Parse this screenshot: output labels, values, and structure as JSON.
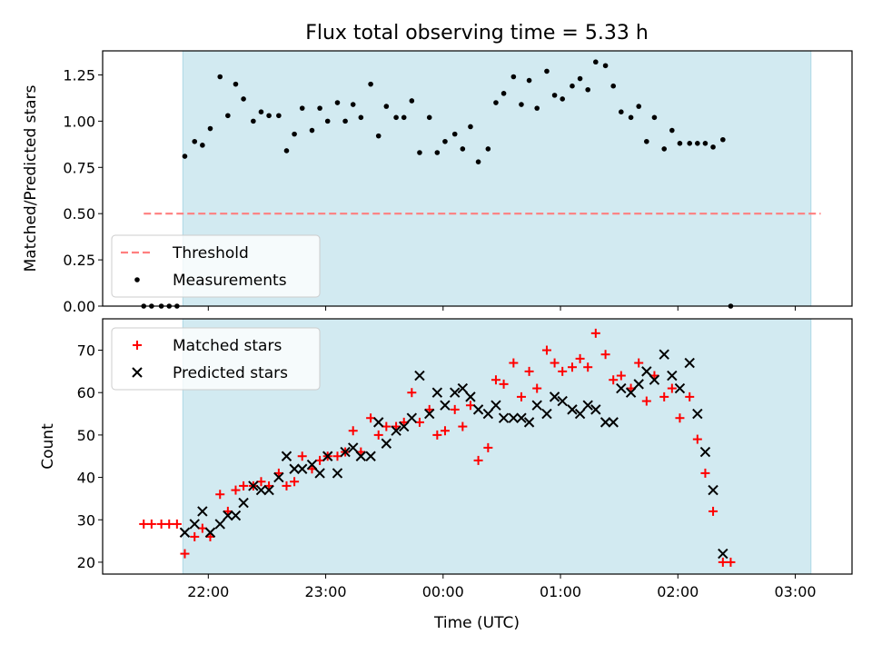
{
  "title": "Flux total observing time = 5.33 h",
  "xlabel": "Time (UTC)",
  "x_tick_labels": [
    "22:00",
    "23:00",
    "00:00",
    "01:00",
    "02:00",
    "03:00"
  ],
  "colors": {
    "shade": "#add8e6",
    "threshold": "#ff7f7f",
    "measurements": "#000000",
    "matched": "#ff0000",
    "predicted": "#000000"
  },
  "chart_data": [
    {
      "type": "scatter",
      "ylabel": "Matched/Predicted stars",
      "ylim": [
        0.0,
        1.38
      ],
      "y_tick_labels": [
        "0.00",
        "0.25",
        "0.50",
        "0.75",
        "1.00",
        "1.25"
      ],
      "xlim": [
        "21:06",
        "03:29"
      ],
      "shaded_interval": [
        "21:47",
        "03:08"
      ],
      "legend_position": "lower left",
      "threshold": {
        "name": "Threshold",
        "value": 0.5,
        "x_range": [
          "21:27",
          "03:13"
        ]
      },
      "series": [
        {
          "name": "Measurements",
          "points": [
            [
              "21:27",
              0.0
            ],
            [
              "21:31",
              0.0
            ],
            [
              "21:36",
              0.0
            ],
            [
              "21:40",
              0.0
            ],
            [
              "21:44",
              0.0
            ],
            [
              "21:48",
              0.81
            ],
            [
              "21:53",
              0.89
            ],
            [
              "21:57",
              0.87
            ],
            [
              "22:01",
              0.96
            ],
            [
              "22:06",
              1.24
            ],
            [
              "22:10",
              1.03
            ],
            [
              "22:14",
              1.2
            ],
            [
              "22:18",
              1.12
            ],
            [
              "22:23",
              1.0
            ],
            [
              "22:27",
              1.05
            ],
            [
              "22:31",
              1.03
            ],
            [
              "22:36",
              1.03
            ],
            [
              "22:40",
              0.84
            ],
            [
              "22:44",
              0.93
            ],
            [
              "22:48",
              1.07
            ],
            [
              "22:53",
              0.95
            ],
            [
              "22:57",
              1.07
            ],
            [
              "23:01",
              1.0
            ],
            [
              "23:06",
              1.1
            ],
            [
              "23:10",
              1.0
            ],
            [
              "23:14",
              1.09
            ],
            [
              "23:18",
              1.02
            ],
            [
              "23:23",
              1.2
            ],
            [
              "23:27",
              0.92
            ],
            [
              "23:31",
              1.08
            ],
            [
              "23:36",
              1.02
            ],
            [
              "23:40",
              1.02
            ],
            [
              "23:44",
              1.11
            ],
            [
              "23:48",
              0.83
            ],
            [
              "23:53",
              1.02
            ],
            [
              "23:57",
              0.83
            ],
            [
              "00:01",
              0.89
            ],
            [
              "00:06",
              0.93
            ],
            [
              "00:10",
              0.85
            ],
            [
              "00:14",
              0.97
            ],
            [
              "00:18",
              0.78
            ],
            [
              "00:23",
              0.85
            ],
            [
              "00:27",
              1.1
            ],
            [
              "00:31",
              1.15
            ],
            [
              "00:36",
              1.24
            ],
            [
              "00:40",
              1.09
            ],
            [
              "00:44",
              1.22
            ],
            [
              "00:48",
              1.07
            ],
            [
              "00:53",
              1.27
            ],
            [
              "00:57",
              1.14
            ],
            [
              "01:01",
              1.12
            ],
            [
              "01:06",
              1.19
            ],
            [
              "01:10",
              1.23
            ],
            [
              "01:14",
              1.17
            ],
            [
              "01:18",
              1.32
            ],
            [
              "01:23",
              1.3
            ],
            [
              "01:27",
              1.19
            ],
            [
              "01:31",
              1.05
            ],
            [
              "01:36",
              1.02
            ],
            [
              "01:40",
              1.08
            ],
            [
              "01:44",
              0.89
            ],
            [
              "01:48",
              1.02
            ],
            [
              "01:53",
              0.85
            ],
            [
              "01:57",
              0.95
            ],
            [
              "02:01",
              0.88
            ],
            [
              "02:06",
              0.88
            ],
            [
              "02:10",
              0.88
            ],
            [
              "02:14",
              0.88
            ],
            [
              "02:18",
              0.86
            ],
            [
              "02:23",
              0.9
            ],
            [
              "02:27",
              0.0
            ]
          ]
        }
      ]
    },
    {
      "type": "scatter",
      "ylabel": "Count",
      "ylim": [
        17.2,
        77.4
      ],
      "y_tick_labels": [
        "20",
        "30",
        "40",
        "50",
        "60",
        "70"
      ],
      "xlim": [
        "21:06",
        "03:29"
      ],
      "shaded_interval": [
        "21:47",
        "03:08"
      ],
      "legend_position": "upper left",
      "series": [
        {
          "name": "Matched stars",
          "marker": "plus",
          "points": [
            [
              "21:27",
              29
            ],
            [
              "21:31",
              29
            ],
            [
              "21:36",
              29
            ],
            [
              "21:40",
              29
            ],
            [
              "21:44",
              29
            ],
            [
              "21:48",
              22
            ],
            [
              "21:53",
              26
            ],
            [
              "21:57",
              28
            ],
            [
              "22:01",
              26
            ],
            [
              "22:06",
              36
            ],
            [
              "22:10",
              32
            ],
            [
              "22:14",
              37
            ],
            [
              "22:18",
              38
            ],
            [
              "22:23",
              38
            ],
            [
              "22:27",
              39
            ],
            [
              "22:31",
              38
            ],
            [
              "22:36",
              41
            ],
            [
              "22:40",
              38
            ],
            [
              "22:44",
              39
            ],
            [
              "22:48",
              45
            ],
            [
              "22:53",
              42
            ],
            [
              "22:57",
              44
            ],
            [
              "23:01",
              45
            ],
            [
              "23:06",
              45
            ],
            [
              "23:10",
              46
            ],
            [
              "23:14",
              51
            ],
            [
              "23:18",
              46
            ],
            [
              "23:23",
              54
            ],
            [
              "23:27",
              50
            ],
            [
              "23:31",
              52
            ],
            [
              "23:36",
              52
            ],
            [
              "23:40",
              53
            ],
            [
              "23:44",
              60
            ],
            [
              "23:48",
              53
            ],
            [
              "23:53",
              56
            ],
            [
              "23:57",
              50
            ],
            [
              "00:01",
              51
            ],
            [
              "00:06",
              56
            ],
            [
              "00:10",
              52
            ],
            [
              "00:14",
              57
            ],
            [
              "00:18",
              44
            ],
            [
              "00:23",
              47
            ],
            [
              "00:27",
              63
            ],
            [
              "00:31",
              62
            ],
            [
              "00:36",
              67
            ],
            [
              "00:40",
              59
            ],
            [
              "00:44",
              65
            ],
            [
              "00:48",
              61
            ],
            [
              "00:53",
              70
            ],
            [
              "00:57",
              67
            ],
            [
              "01:01",
              65
            ],
            [
              "01:06",
              66
            ],
            [
              "01:10",
              68
            ],
            [
              "01:14",
              66
            ],
            [
              "01:18",
              74
            ],
            [
              "01:23",
              69
            ],
            [
              "01:27",
              63
            ],
            [
              "01:31",
              64
            ],
            [
              "01:36",
              61
            ],
            [
              "01:40",
              67
            ],
            [
              "01:44",
              58
            ],
            [
              "01:48",
              64
            ],
            [
              "01:53",
              59
            ],
            [
              "01:57",
              61
            ],
            [
              "02:01",
              54
            ],
            [
              "02:06",
              59
            ],
            [
              "02:10",
              49
            ],
            [
              "02:14",
              41
            ],
            [
              "02:18",
              32
            ],
            [
              "02:23",
              20
            ],
            [
              "02:27",
              20
            ]
          ]
        },
        {
          "name": "Predicted stars",
          "marker": "x",
          "points": [
            [
              "21:48",
              27
            ],
            [
              "21:53",
              29
            ],
            [
              "21:57",
              32
            ],
            [
              "22:01",
              27
            ],
            [
              "22:06",
              29
            ],
            [
              "22:10",
              31
            ],
            [
              "22:14",
              31
            ],
            [
              "22:18",
              34
            ],
            [
              "22:23",
              38
            ],
            [
              "22:27",
              37
            ],
            [
              "22:31",
              37
            ],
            [
              "22:36",
              40
            ],
            [
              "22:40",
              45
            ],
            [
              "22:44",
              42
            ],
            [
              "22:48",
              42
            ],
            [
              "22:53",
              43
            ],
            [
              "22:57",
              41
            ],
            [
              "23:01",
              45
            ],
            [
              "23:06",
              41
            ],
            [
              "23:10",
              46
            ],
            [
              "23:14",
              47
            ],
            [
              "23:18",
              45
            ],
            [
              "23:23",
              45
            ],
            [
              "23:27",
              53
            ],
            [
              "23:31",
              48
            ],
            [
              "23:36",
              51
            ],
            [
              "23:40",
              52
            ],
            [
              "23:44",
              54
            ],
            [
              "23:48",
              64
            ],
            [
              "23:53",
              55
            ],
            [
              "23:57",
              60
            ],
            [
              "00:01",
              57
            ],
            [
              "00:06",
              60
            ],
            [
              "00:10",
              61
            ],
            [
              "00:14",
              59
            ],
            [
              "00:18",
              56
            ],
            [
              "00:23",
              55
            ],
            [
              "00:27",
              57
            ],
            [
              "00:31",
              54
            ],
            [
              "00:36",
              54
            ],
            [
              "00:40",
              54
            ],
            [
              "00:44",
              53
            ],
            [
              "00:48",
              57
            ],
            [
              "00:53",
              55
            ],
            [
              "00:57",
              59
            ],
            [
              "01:01",
              58
            ],
            [
              "01:06",
              56
            ],
            [
              "01:10",
              55
            ],
            [
              "01:14",
              57
            ],
            [
              "01:18",
              56
            ],
            [
              "01:23",
              53
            ],
            [
              "01:27",
              53
            ],
            [
              "01:31",
              61
            ],
            [
              "01:36",
              60
            ],
            [
              "01:40",
              62
            ],
            [
              "01:44",
              65
            ],
            [
              "01:48",
              63
            ],
            [
              "01:53",
              69
            ],
            [
              "01:57",
              64
            ],
            [
              "02:01",
              61
            ],
            [
              "02:06",
              67
            ],
            [
              "02:10",
              55
            ],
            [
              "02:14",
              46
            ],
            [
              "02:18",
              37
            ],
            [
              "02:23",
              22
            ]
          ]
        }
      ]
    }
  ]
}
